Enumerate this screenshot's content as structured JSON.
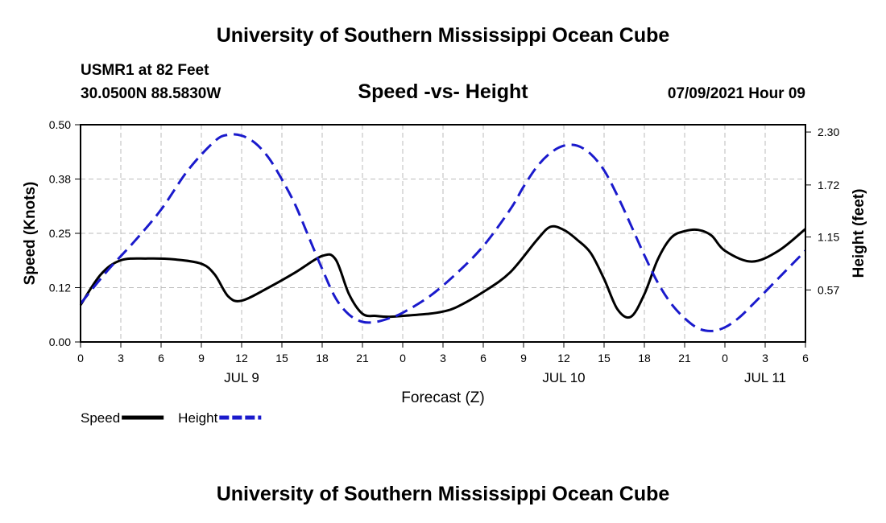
{
  "header_title": "University of Southern Mississippi Ocean Cube",
  "footer_title": "University of Southern Mississippi Ocean Cube",
  "station": "USMR1 at 82 Feet",
  "coords": "30.0500N  88.5830W",
  "timestamp": "07/09/2021 Hour 09",
  "colors": {
    "speed": "#000000",
    "height": "#1a1acc",
    "grid": "#bbbbbb"
  },
  "chart_data": {
    "type": "line",
    "title": "Speed -vs- Height",
    "xlabel": "Forecast (Z)",
    "ylabel_left": "Speed (Knots)",
    "ylabel_right": "Height (feet)",
    "x_unit": "forecast hours from 0Z JUL 9",
    "xlim": [
      0,
      54
    ],
    "ylim_left": [
      0,
      0.5
    ],
    "ylim_right": [
      0,
      2.38
    ],
    "x_ticks": [
      0,
      3,
      6,
      9,
      12,
      15,
      18,
      21,
      24,
      27,
      30,
      33,
      36,
      39,
      42,
      45,
      48,
      51,
      54
    ],
    "x_tick_labels": [
      "0",
      "3",
      "6",
      "9",
      "12",
      "15",
      "18",
      "21",
      "0",
      "3",
      "6",
      "9",
      "12",
      "15",
      "18",
      "21",
      "0",
      "3",
      "6"
    ],
    "date_labels": [
      {
        "x": 12,
        "text": "JUL 9"
      },
      {
        "x": 36,
        "text": "JUL 10"
      },
      {
        "x": 51,
        "text": "JUL 11"
      }
    ],
    "y_ticks_left": [
      0.0,
      0.125,
      0.25,
      0.375,
      0.5
    ],
    "y_tick_labels_left": [
      "0.00",
      "0.12",
      "0.25",
      "0.38",
      "0.50"
    ],
    "y_ticks_right": [
      0.57,
      1.15,
      1.72,
      2.3
    ],
    "y_tick_labels_right": [
      "0.57",
      "1.15",
      "1.72",
      "2.30"
    ],
    "grid": true,
    "series": [
      {
        "name": "Speed",
        "axis": "left",
        "style": "solid",
        "x": [
          0,
          1.5,
          3,
          5,
          7,
          9,
          10,
          11,
          12,
          14,
          16,
          18,
          19,
          20,
          21,
          22,
          23,
          24,
          26,
          27,
          28,
          30,
          32,
          34,
          35,
          36,
          37,
          38,
          39,
          40,
          41,
          42,
          43,
          44,
          45,
          46,
          47,
          48,
          50,
          52,
          54
        ],
        "values": [
          0.085,
          0.155,
          0.188,
          0.192,
          0.19,
          0.18,
          0.155,
          0.105,
          0.095,
          0.125,
          0.16,
          0.198,
          0.19,
          0.11,
          0.065,
          0.06,
          0.058,
          0.06,
          0.065,
          0.07,
          0.08,
          0.115,
          0.16,
          0.235,
          0.265,
          0.258,
          0.235,
          0.205,
          0.145,
          0.075,
          0.058,
          0.11,
          0.19,
          0.24,
          0.255,
          0.258,
          0.245,
          0.21,
          0.185,
          0.21,
          0.26
        ]
      },
      {
        "name": "Height",
        "axis": "right",
        "style": "dashed",
        "x": [
          0,
          2,
          4,
          6,
          8,
          10,
          11,
          12,
          13,
          14,
          15,
          16,
          17,
          18,
          19,
          20,
          21,
          22,
          23,
          24,
          26,
          28,
          30,
          32,
          33,
          34,
          35,
          36,
          37,
          38,
          39,
          40,
          41,
          42,
          43,
          44,
          45,
          46,
          47,
          48,
          49,
          50,
          52,
          54
        ],
        "values": [
          0.42,
          0.78,
          1.1,
          1.45,
          1.88,
          2.2,
          2.27,
          2.26,
          2.18,
          2.02,
          1.78,
          1.5,
          1.15,
          0.8,
          0.48,
          0.3,
          0.22,
          0.22,
          0.26,
          0.32,
          0.5,
          0.75,
          1.05,
          1.45,
          1.7,
          1.92,
          2.07,
          2.15,
          2.15,
          2.06,
          1.88,
          1.6,
          1.28,
          0.95,
          0.65,
          0.42,
          0.26,
          0.15,
          0.12,
          0.16,
          0.26,
          0.4,
          0.7,
          1.0
        ]
      }
    ],
    "legend": [
      {
        "label": "Speed",
        "series": "Speed"
      },
      {
        "label": "Height",
        "series": "Height"
      }
    ],
    "legend_position": "bottom-left"
  }
}
